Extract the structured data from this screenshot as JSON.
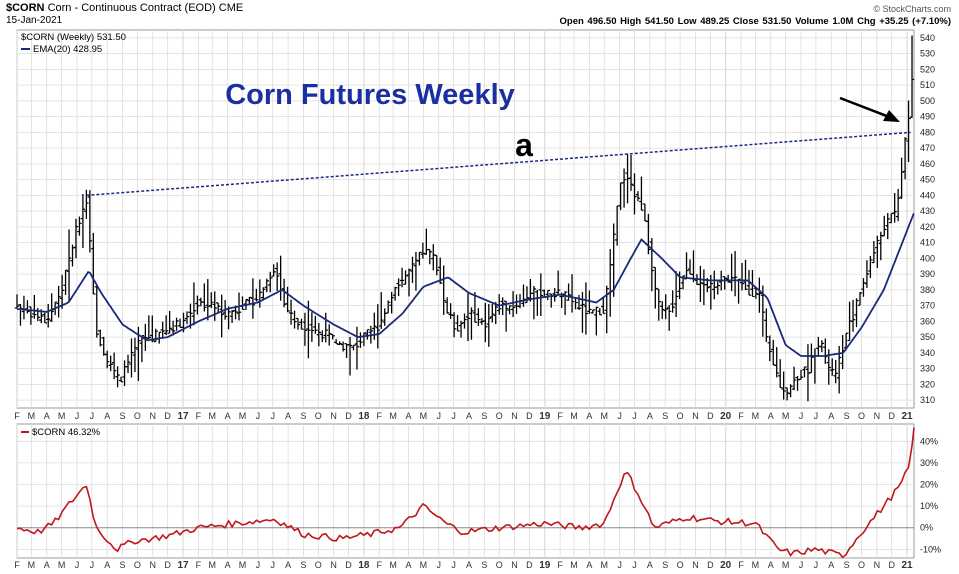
{
  "header": {
    "symbol": "$CORN",
    "description": "Corn - Continuous Contract (EOD)",
    "exchange": "CME",
    "date": "15-Jan-2021",
    "watermark": "© StockCharts.com",
    "ohlc": "Open 496.50  High 541.50  Low 489.25  Close 531.50  Volume 1.0M  Chg +35.25 (+7.10%)"
  },
  "legend": {
    "main_series": "$CORN (Weekly) 531.50",
    "ema": "EMA(20) 428.95",
    "lower_series": "$CORN 46.32%"
  },
  "annotations": {
    "title": "Corn Futures Weekly",
    "label_a": "a"
  },
  "colors": {
    "bars": "#000000",
    "ema": "#1a2a7a",
    "title": "#1a2fa0",
    "trendline": "#1a2a8a",
    "lower_line": "#c0171c",
    "grid": "#dcdcdc",
    "zero_line": "#888888"
  },
  "chart_data": [
    {
      "type": "ohlc",
      "title": "Corn Futures Weekly",
      "ylim": [
        305,
        545
      ],
      "yticks": [
        310,
        320,
        330,
        340,
        350,
        360,
        370,
        380,
        390,
        400,
        410,
        420,
        430,
        440,
        450,
        460,
        470,
        480,
        490,
        500,
        510,
        520,
        530,
        540
      ],
      "x_range": [
        "2016-02-01",
        "2021-01-15"
      ],
      "x_tick_labels": [
        "F",
        "M",
        "A",
        "M",
        "J",
        "J",
        "A",
        "S",
        "O",
        "N",
        "D",
        "17",
        "F",
        "M",
        "A",
        "M",
        "J",
        "J",
        "A",
        "S",
        "O",
        "N",
        "D",
        "18",
        "F",
        "M",
        "A",
        "M",
        "J",
        "J",
        "A",
        "S",
        "O",
        "N",
        "D",
        "19",
        "F",
        "M",
        "A",
        "M",
        "J",
        "J",
        "A",
        "S",
        "O",
        "N",
        "D",
        "20",
        "F",
        "M",
        "A",
        "M",
        "J",
        "J",
        "A",
        "S",
        "O",
        "N",
        "D",
        "21"
      ],
      "price_anchors": [
        [
          "2016-02-01",
          370
        ],
        [
          "2016-03-01",
          365
        ],
        [
          "2016-04-01",
          360
        ],
        [
          "2016-05-01",
          380
        ],
        [
          "2016-06-01",
          420
        ],
        [
          "2016-06-20",
          438
        ],
        [
          "2016-07-10",
          355
        ],
        [
          "2016-08-01",
          335
        ],
        [
          "2016-08-25",
          322
        ],
        [
          "2016-09-15",
          335
        ],
        [
          "2016-10-10",
          350
        ],
        [
          "2016-11-01",
          350
        ],
        [
          "2016-12-01",
          355
        ],
        [
          "2017-01-01",
          360
        ],
        [
          "2017-02-01",
          372
        ],
        [
          "2017-03-01",
          370
        ],
        [
          "2017-04-01",
          365
        ],
        [
          "2017-05-01",
          370
        ],
        [
          "2017-06-01",
          375
        ],
        [
          "2017-07-05",
          395
        ],
        [
          "2017-07-25",
          370
        ],
        [
          "2017-08-15",
          360
        ],
        [
          "2017-09-15",
          355
        ],
        [
          "2017-10-15",
          352
        ],
        [
          "2017-11-15",
          345
        ],
        [
          "2017-12-10",
          343
        ],
        [
          "2018-01-01",
          350
        ],
        [
          "2018-02-01",
          358
        ],
        [
          "2018-03-01",
          380
        ],
        [
          "2018-04-01",
          390
        ],
        [
          "2018-05-01",
          405
        ],
        [
          "2018-05-25",
          400
        ],
        [
          "2018-06-15",
          368
        ],
        [
          "2018-07-05",
          355
        ],
        [
          "2018-08-01",
          365
        ],
        [
          "2018-09-01",
          358
        ],
        [
          "2018-10-01",
          370
        ],
        [
          "2018-11-01",
          370
        ],
        [
          "2018-12-01",
          378
        ],
        [
          "2019-01-01",
          377
        ],
        [
          "2019-02-01",
          378
        ],
        [
          "2019-03-01",
          372
        ],
        [
          "2019-04-01",
          365
        ],
        [
          "2019-05-01",
          368
        ],
        [
          "2019-05-15",
          400
        ],
        [
          "2019-06-01",
          445
        ],
        [
          "2019-06-15",
          455
        ],
        [
          "2019-07-01",
          440
        ],
        [
          "2019-07-20",
          430
        ],
        [
          "2019-08-10",
          380
        ],
        [
          "2019-08-25",
          365
        ],
        [
          "2019-09-15",
          370
        ],
        [
          "2019-10-15",
          395
        ],
        [
          "2019-11-15",
          380
        ],
        [
          "2019-12-15",
          385
        ],
        [
          "2020-01-15",
          388
        ],
        [
          "2020-02-15",
          380
        ],
        [
          "2020-03-10",
          375
        ],
        [
          "2020-03-25",
          345
        ],
        [
          "2020-04-20",
          320
        ],
        [
          "2020-05-05",
          315
        ],
        [
          "2020-05-25",
          325
        ],
        [
          "2020-06-15",
          330
        ],
        [
          "2020-07-10",
          350
        ],
        [
          "2020-07-20",
          335
        ],
        [
          "2020-08-10",
          325
        ],
        [
          "2020-08-25",
          345
        ],
        [
          "2020-09-15",
          365
        ],
        [
          "2020-10-15",
          395
        ],
        [
          "2020-11-15",
          420
        ],
        [
          "2020-12-10",
          430
        ],
        [
          "2020-12-31",
          480
        ],
        [
          "2021-01-08",
          500
        ],
        [
          "2021-01-15",
          531.5
        ]
      ],
      "ema_anchors": [
        [
          "2016-02-01",
          368
        ],
        [
          "2016-04-01",
          366
        ],
        [
          "2016-05-15",
          372
        ],
        [
          "2016-06-25",
          392
        ],
        [
          "2016-07-20",
          378
        ],
        [
          "2016-09-01",
          358
        ],
        [
          "2016-10-20",
          348
        ],
        [
          "2016-12-01",
          350
        ],
        [
          "2017-02-01",
          360
        ],
        [
          "2017-04-01",
          368
        ],
        [
          "2017-06-01",
          372
        ],
        [
          "2017-07-20",
          380
        ],
        [
          "2017-09-01",
          370
        ],
        [
          "2017-11-01",
          358
        ],
        [
          "2017-12-20",
          350
        ],
        [
          "2018-02-01",
          352
        ],
        [
          "2018-03-20",
          365
        ],
        [
          "2018-05-01",
          382
        ],
        [
          "2018-06-20",
          388
        ],
        [
          "2018-08-01",
          378
        ],
        [
          "2018-10-01",
          370
        ],
        [
          "2018-12-01",
          374
        ],
        [
          "2019-02-01",
          377
        ],
        [
          "2019-04-15",
          372
        ],
        [
          "2019-05-20",
          380
        ],
        [
          "2019-06-20",
          398
        ],
        [
          "2019-07-15",
          412
        ],
        [
          "2019-08-25",
          400
        ],
        [
          "2019-10-01",
          388
        ],
        [
          "2019-12-01",
          386
        ],
        [
          "2020-02-15",
          386
        ],
        [
          "2020-03-25",
          375
        ],
        [
          "2020-05-01",
          345
        ],
        [
          "2020-06-01",
          338
        ],
        [
          "2020-07-15",
          338
        ],
        [
          "2020-08-25",
          340
        ],
        [
          "2020-10-01",
          356
        ],
        [
          "2020-11-15",
          380
        ],
        [
          "2020-12-20",
          408
        ],
        [
          "2021-01-15",
          428.95
        ]
      ],
      "trendline": [
        [
          "2016-06-20",
          440
        ],
        [
          "2021-01-08",
          480
        ]
      ]
    },
    {
      "type": "line",
      "series_label": "$CORN 46.32%",
      "ylim": [
        -14,
        48
      ],
      "yticks": [
        -10,
        0,
        10,
        20,
        30,
        40
      ],
      "ytick_labels": [
        "-10%",
        "0%",
        "10%",
        "20%",
        "30%",
        "40%"
      ],
      "pct_anchors": [
        [
          "2016-02-01",
          0
        ],
        [
          "2016-03-15",
          -2
        ],
        [
          "2016-04-15",
          2
        ],
        [
          "2016-05-20",
          12
        ],
        [
          "2016-06-20",
          20
        ],
        [
          "2016-07-10",
          0
        ],
        [
          "2016-08-20",
          -10
        ],
        [
          "2016-09-25",
          -6
        ],
        [
          "2016-11-01",
          -5
        ],
        [
          "2016-12-15",
          -3
        ],
        [
          "2017-02-01",
          0
        ],
        [
          "2017-04-15",
          2
        ],
        [
          "2017-07-05",
          4
        ],
        [
          "2017-09-01",
          -3
        ],
        [
          "2017-11-15",
          -5
        ],
        [
          "2018-01-15",
          -3
        ],
        [
          "2018-03-15",
          0
        ],
        [
          "2018-05-01",
          10
        ],
        [
          "2018-06-15",
          2
        ],
        [
          "2018-07-20",
          -2
        ],
        [
          "2018-10-01",
          0
        ],
        [
          "2019-01-01",
          2
        ],
        [
          "2019-03-15",
          0
        ],
        [
          "2019-05-01",
          2
        ],
        [
          "2019-06-01",
          20
        ],
        [
          "2019-06-15",
          26
        ],
        [
          "2019-07-10",
          15
        ],
        [
          "2019-08-10",
          0
        ],
        [
          "2019-10-15",
          5
        ],
        [
          "2019-12-15",
          3
        ],
        [
          "2020-03-01",
          2
        ],
        [
          "2020-04-15",
          -10
        ],
        [
          "2020-05-15",
          -12
        ],
        [
          "2020-07-01",
          -10
        ],
        [
          "2020-08-25",
          -13
        ],
        [
          "2020-10-01",
          -2
        ],
        [
          "2020-11-15",
          10
        ],
        [
          "2020-12-20",
          20
        ],
        [
          "2021-01-08",
          30
        ],
        [
          "2021-01-15",
          46.32
        ]
      ]
    }
  ]
}
